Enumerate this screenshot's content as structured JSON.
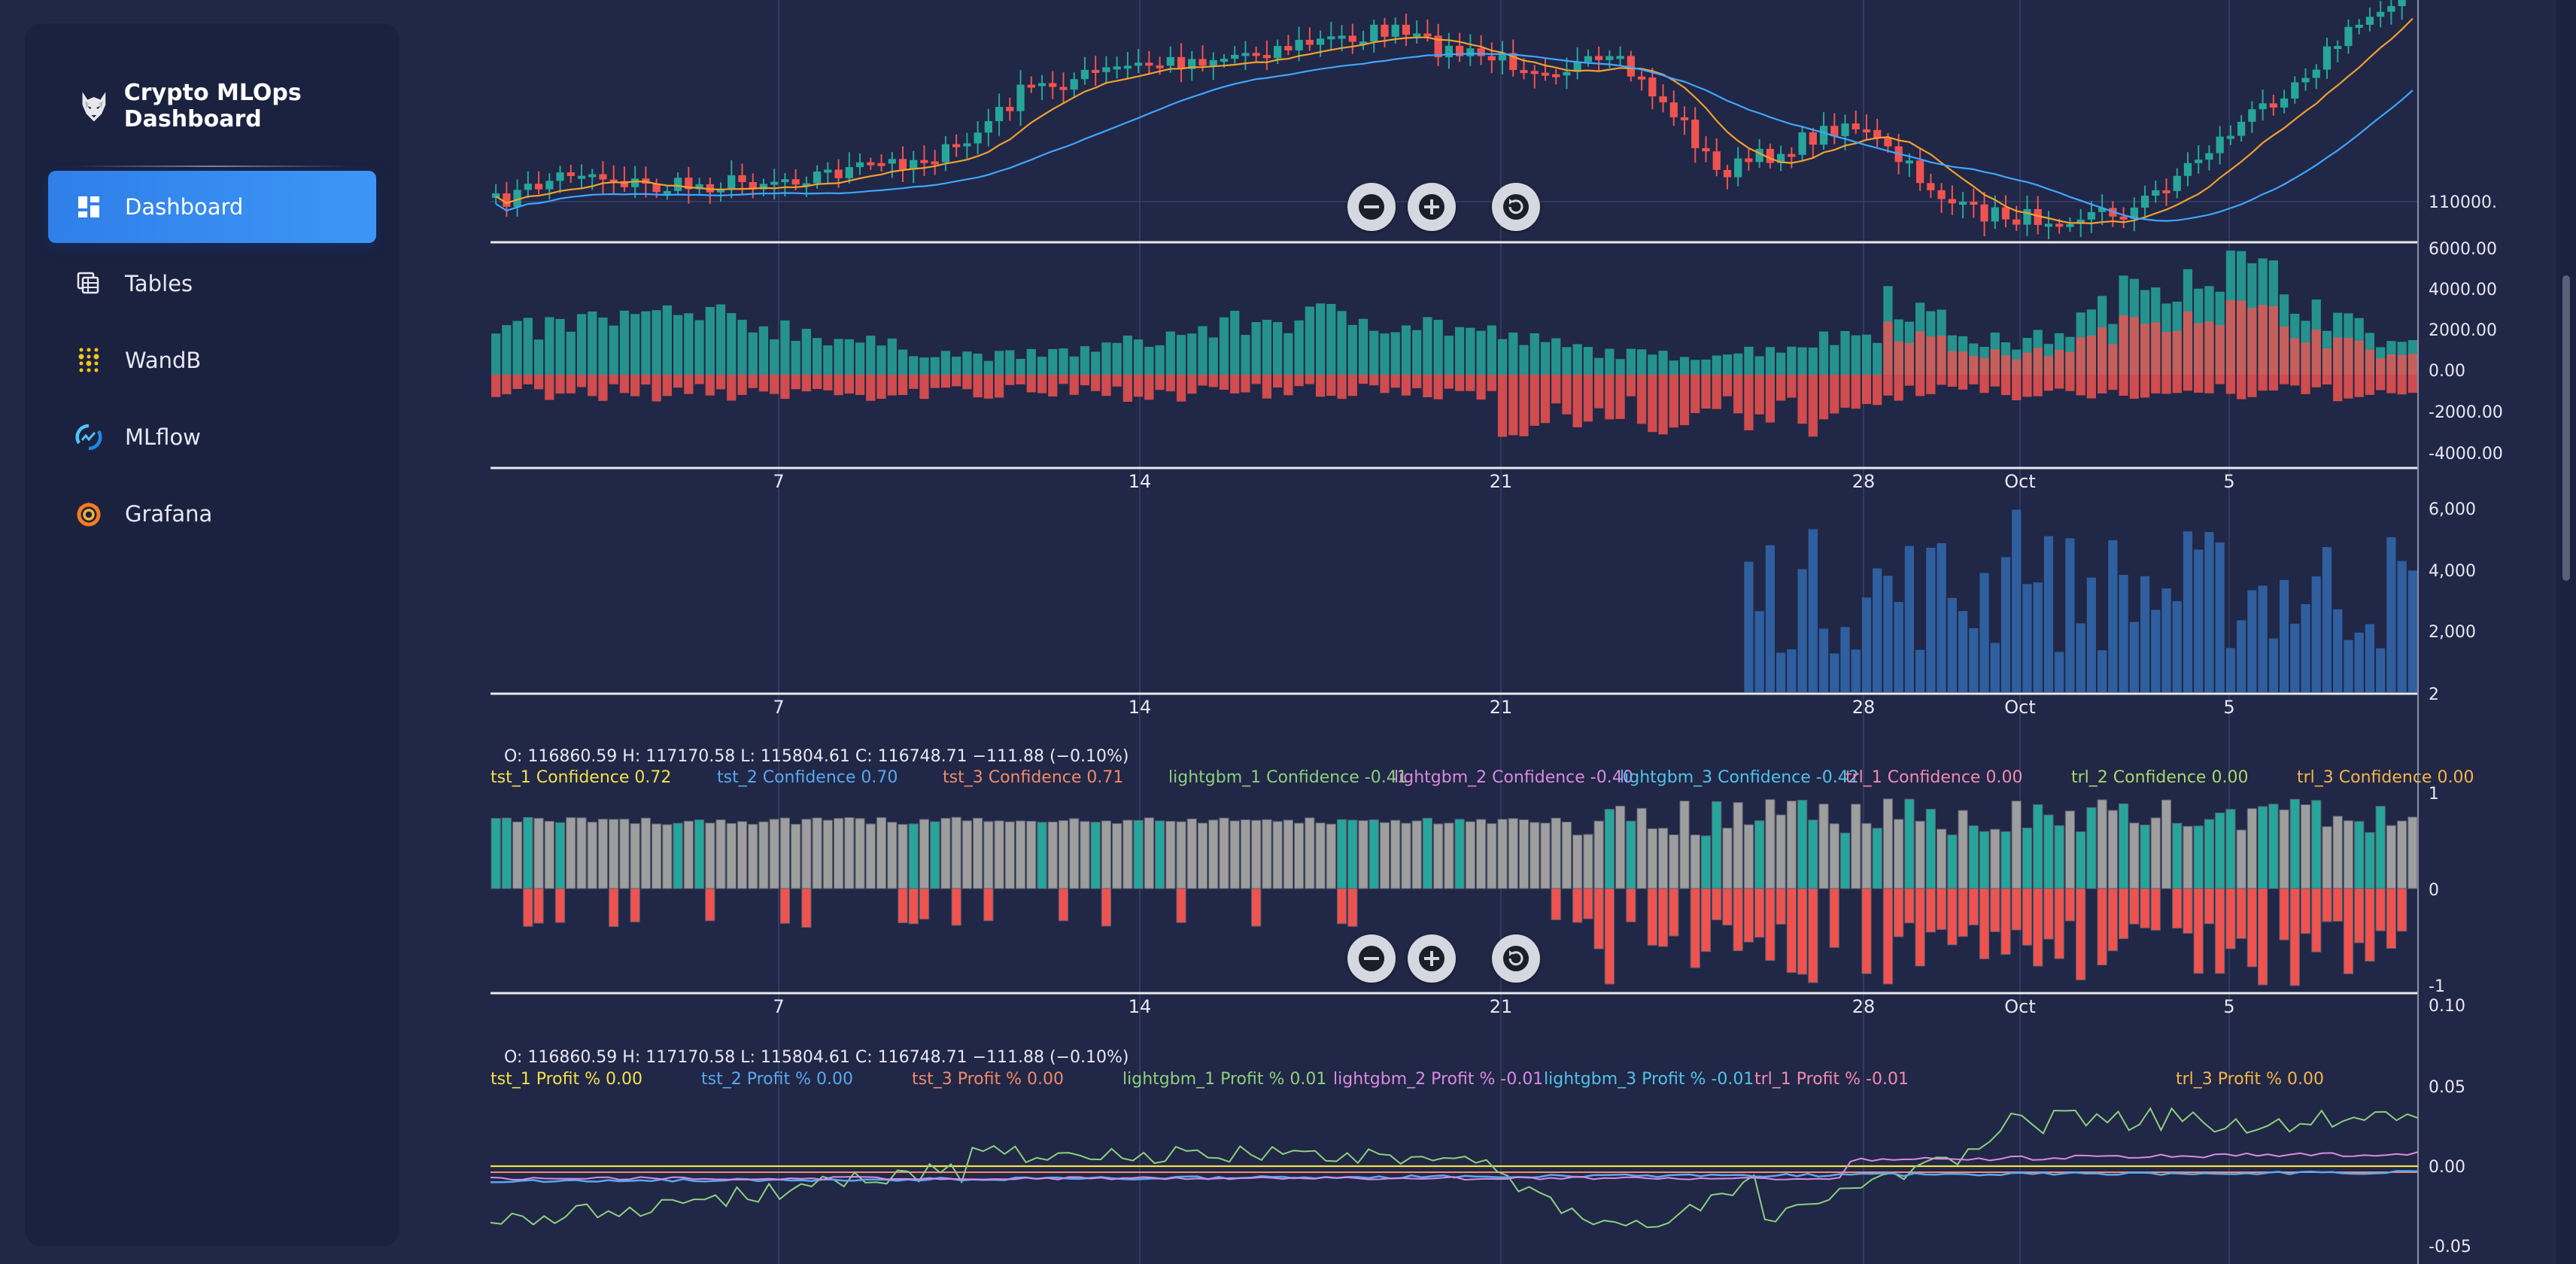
{
  "app": {
    "title": "Crypto MLOps Dashboard"
  },
  "sidebar": {
    "items": [
      {
        "label": "Dashboard",
        "icon": "dashboard-icon",
        "active": true
      },
      {
        "label": "Tables",
        "icon": "tables-icon",
        "active": false
      },
      {
        "label": "WandB",
        "icon": "wandb-icon",
        "active": false
      },
      {
        "label": "MLflow",
        "icon": "mlflow-icon",
        "active": false
      },
      {
        "label": "Grafana",
        "icon": "grafana-icon",
        "active": false
      }
    ]
  },
  "colors": {
    "up": "#26a69a",
    "down": "#ef5350",
    "volume": "#2f5f9f",
    "neutral": "#9e9e9e",
    "ma_fast": "#f0a030",
    "ma_slow": "#3ea6ff",
    "accent": "#3d96f7"
  },
  "date_ticks": [
    "7",
    "14",
    "21",
    "28",
    "Oct",
    "5"
  ],
  "price_pane": {
    "price_label": "110000."
  },
  "flow_pane": {
    "ticks": [
      "6000.00",
      "4000.00",
      "2000.00",
      "0.00",
      "-2000.00",
      "-4000.00"
    ]
  },
  "volume_pane": {
    "ticks": [
      "6,000",
      "4,000",
      "2,000",
      "2"
    ]
  },
  "confidence_pane": {
    "ohlc": "O: 116860.59 H: 117170.58 L: 115804.61 C: 116748.71 −111.88 (−0.10%)",
    "legend": [
      {
        "text": "tst_1 Confidence 0.72",
        "color": "#f4e04d"
      },
      {
        "text": "tst_2 Confidence 0.70",
        "color": "#5aa8f0"
      },
      {
        "text": "tst_3 Confidence 0.71",
        "color": "#f08a6a"
      },
      {
        "text": "lightgbm_1 Confidence -0.41",
        "color": "#8ccf7e"
      },
      {
        "text": "lightgbm_2 Confidence -0.40",
        "color": "#d98ae0"
      },
      {
        "text": "lightgbm_3 Confidence -0.42",
        "color": "#4fc3e8"
      },
      {
        "text": "trl_1 Confidence 0.00",
        "color": "#f28ab0"
      },
      {
        "text": "trl_2 Confidence 0.00",
        "color": "#a8d86a"
      },
      {
        "text": "trl_3 Confidence 0.00",
        "color": "#f5b54a"
      }
    ],
    "ticks": [
      "1",
      "0",
      "-1"
    ]
  },
  "profit_pane": {
    "ohlc": "O: 116860.59 H: 117170.58 L: 115804.61 C: 116748.71 −111.88 (−0.10%)",
    "legend": [
      {
        "text": "tst_1 Profit % 0.00",
        "color": "#f4e04d"
      },
      {
        "text": "tst_2 Profit % 0.00",
        "color": "#5aa8f0"
      },
      {
        "text": "tst_3 Profit % 0.00",
        "color": "#f08a6a"
      },
      {
        "text": "lightgbm_1 Profit % 0.01",
        "color": "#8ccf7e"
      },
      {
        "text": "lightgbm_2 Profit % -0.01",
        "color": "#d98ae0"
      },
      {
        "text": "lightgbm_3 Profit % -0.01",
        "color": "#4fc3e8"
      },
      {
        "text": "trl_1 Profit % -0.01",
        "color": "#f28ab0"
      },
      {
        "text": "trl_3 Profit % 0.00",
        "color": "#f5b54a"
      }
    ],
    "ticks": [
      "0.10",
      "0.05",
      "0.00",
      "-0.05"
    ]
  },
  "controls": {
    "zoom_out": "zoom-out",
    "zoom_in": "zoom-in",
    "reset": "reset"
  }
}
